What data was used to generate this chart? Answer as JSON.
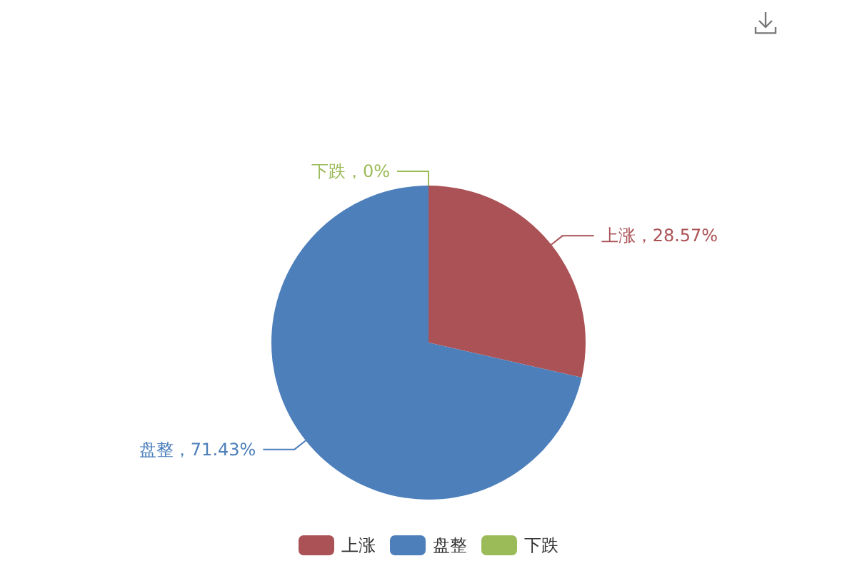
{
  "chart_data": {
    "type": "pie",
    "categories": [
      "上涨",
      "盘整",
      "下跌"
    ],
    "values": [
      28.57,
      71.43,
      0
    ],
    "colors": [
      "#ab5256",
      "#4d7fbb",
      "#9bbb59"
    ],
    "value_labels": [
      "上涨，28.57%",
      "盘整，71.43%",
      "下跌，0%"
    ],
    "legend": "bottom"
  }
}
